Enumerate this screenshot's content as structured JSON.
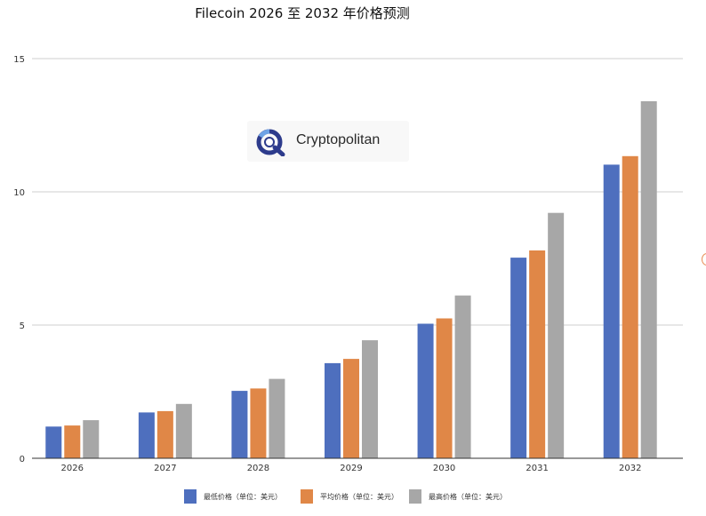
{
  "title": "Filecoin 2026 至 2032 年价格预测",
  "watermark": {
    "text": "Cryptopolitan"
  },
  "chart_data": {
    "type": "bar",
    "title": "Filecoin 2026 至 2032 年价格预测",
    "categories": [
      "2026",
      "2027",
      "2028",
      "2029",
      "2030",
      "2031",
      "2032"
    ],
    "series": [
      {
        "name": "最低价格（单位：美元）",
        "color": "#4e6fbe",
        "values": [
          1.19,
          1.72,
          2.53,
          3.57,
          5.05,
          7.53,
          11.02
        ]
      },
      {
        "name": "平均价格（单位：美元）",
        "color": "#e08747",
        "values": [
          1.23,
          1.77,
          2.62,
          3.73,
          5.25,
          7.8,
          11.34
        ]
      },
      {
        "name": "最高价格（单位：美元）",
        "color": "#a7a7a7",
        "values": [
          1.43,
          2.04,
          2.98,
          4.43,
          6.11,
          9.21,
          13.4
        ]
      }
    ],
    "y_ticks": [
      0,
      5,
      10,
      15
    ],
    "ylim": [
      0,
      15
    ],
    "xlabel": "",
    "ylabel": "",
    "grid": true,
    "legend_position": "bottom"
  }
}
